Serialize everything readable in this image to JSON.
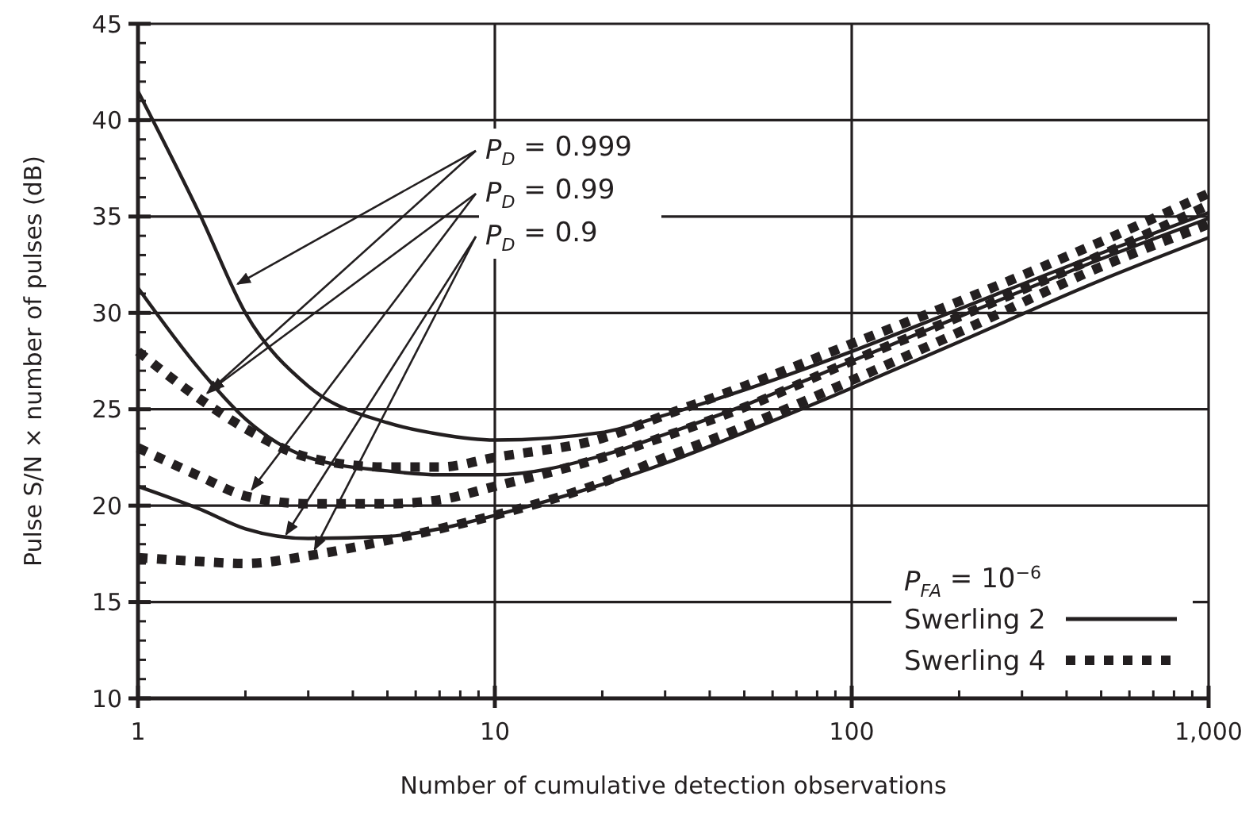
{
  "chart_data": {
    "type": "line",
    "xlabel": "Number of cumulative detection observations",
    "ylabel": "Pulse S/N × number of pulses (dB)",
    "legend_title": "P$_{FA}$ = 10$^{−6}$",
    "legend": "bottom right",
    "log": "x",
    "grid": true,
    "marker": "none",
    "xlim": [
      1,
      1000
    ],
    "xticks": [
      1,
      10,
      100,
      {
        "value": 1000,
        "label": "1,000"
      }
    ],
    "ylim": [
      10,
      45
    ],
    "yticks": [
      10,
      15,
      20,
      25,
      30,
      35,
      40,
      45
    ],
    "x": [
      1,
      1.5,
      2,
      3,
      5,
      7,
      10,
      20,
      30,
      50,
      100,
      200,
      500,
      1000
    ],
    "annotations": [
      {
        "text": "P$_{D}$ = 0.999",
        "x": 1.9,
        "y": 31.5
      },
      {
        "text": "P$_{D}$ = 0.99",
        "x": 1.6,
        "y": 26
      },
      {
        "text": "P$_{D}$ = 0.9",
        "x": 2.6,
        "y": 18.5
      }
    ],
    "series": [
      {
        "name": "Swerling 2",
        "color": "#231f20",
        "line_style": "solid",
        "values": [
          41.5,
          35,
          30,
          26.2,
          24.3,
          23.7,
          23.4,
          23.8,
          24.7,
          26,
          28.0,
          30.2,
          33.1,
          35.2
        ]
      },
      {
        "name": "Swerling 4",
        "color": "#231f20",
        "line_style": "dotted",
        "values": [
          28,
          25.5,
          24,
          22.5,
          22,
          22,
          22.5,
          23.5,
          24.7,
          26.2,
          28.4,
          30.6,
          33.7,
          36.2
        ]
      },
      {
        "color": "#231f20",
        "line_style": "solid",
        "values": [
          31.3,
          27,
          24.5,
          22.5,
          21.8,
          21.6,
          21.6,
          22.6,
          23.7,
          25.2,
          27.5,
          29.8,
          32.8,
          34.9
        ]
      },
      {
        "color": "#231f20",
        "line_style": "dotted",
        "values": [
          23,
          21.5,
          20.5,
          20.1,
          20.1,
          20.3,
          21,
          22.5,
          23.6,
          25.1,
          27.5,
          29.8,
          33,
          35.6
        ]
      },
      {
        "color": "#231f20",
        "line_style": "solid",
        "values": [
          21,
          19.8,
          18.8,
          18.3,
          18.4,
          18.8,
          19.5,
          21.1,
          22.2,
          23.8,
          26.1,
          28.5,
          31.7,
          33.9
        ]
      },
      {
        "color": "#231f20",
        "line_style": "dotted",
        "values": [
          17.3,
          17.1,
          17.0,
          17.4,
          18.2,
          18.8,
          19.5,
          21.2,
          22.5,
          24.1,
          26.5,
          29,
          32.4,
          34.6
        ]
      }
    ]
  }
}
